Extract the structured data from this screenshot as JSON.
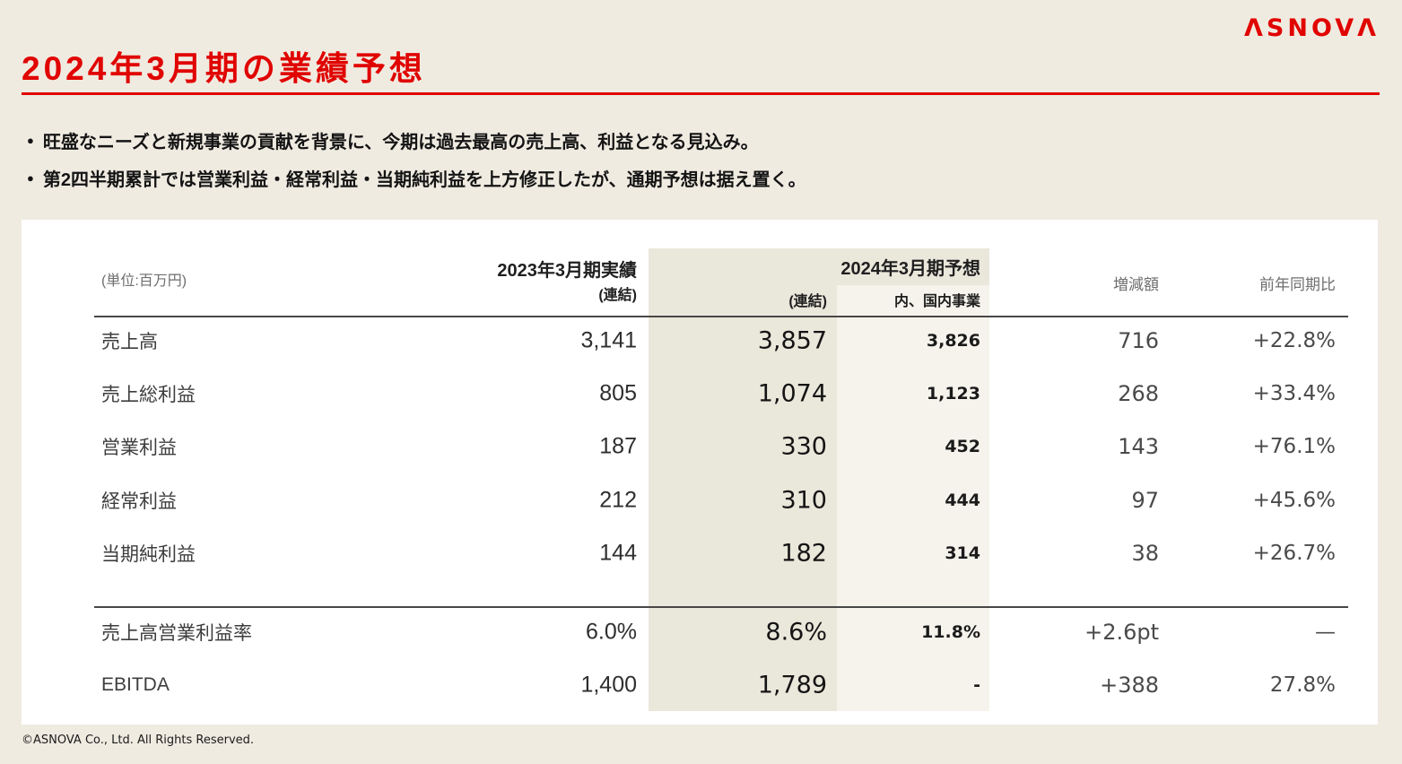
{
  "logo_text": "ΛSNOVΛ",
  "title": "2024年3月期の業績予想",
  "bullet_marker": "●",
  "bullets": [
    "旺盛なニーズと新規事業の貢献を背景に、今期は過去最高の売上高、利益となる見込み。",
    "第2四半期累計では営業利益・経常利益・当期純利益を上方修正したが、通期予想は据え置く。"
  ],
  "table": {
    "unit_note": "(単位:百万円)",
    "col_actual": {
      "title": "2023年3月期実績",
      "sub": "(連結)"
    },
    "col_forecast": {
      "title": "2024年3月期予想",
      "sub_consolidated": "(連結)",
      "sub_domestic": "内、国内事業"
    },
    "col_change": "増減額",
    "col_yoy": "前年同期比",
    "rows": [
      {
        "label": "売上高",
        "actual": "3,141",
        "forecast": "3,857",
        "domestic": "3,826",
        "change": "716",
        "yoy": "+22.8%"
      },
      {
        "label": "売上総利益",
        "actual": "805",
        "forecast": "1,074",
        "domestic": "1,123",
        "change": "268",
        "yoy": "+33.4%"
      },
      {
        "label": "営業利益",
        "actual": "187",
        "forecast": "330",
        "domestic": "452",
        "change": "143",
        "yoy": "+76.1%"
      },
      {
        "label": "経常利益",
        "actual": "212",
        "forecast": "310",
        "domestic": "444",
        "change": "97",
        "yoy": "+45.6%"
      },
      {
        "label": "当期純利益",
        "actual": "144",
        "forecast": "182",
        "domestic": "314",
        "change": "38",
        "yoy": "+26.7%"
      }
    ],
    "extra_rows": [
      {
        "label": "売上高営業利益率",
        "actual": "6.0%",
        "forecast": "8.6%",
        "domestic": "11.8%",
        "change": "+2.6pt",
        "yoy": "—"
      },
      {
        "label": "EBITDA",
        "actual": "1,400",
        "forecast": "1,789",
        "domestic": "-",
        "change": "+388",
        "yoy": "27.8%"
      }
    ]
  },
  "footer": "©ASNOVA Co., Ltd. All Rights Reserved.",
  "colors": {
    "accent_red": "#e00400",
    "page_bg": "#f0ebe1",
    "card_bg": "#ffffff",
    "shade_dark": "#eae7db",
    "shade_light": "#f5f3ec"
  }
}
